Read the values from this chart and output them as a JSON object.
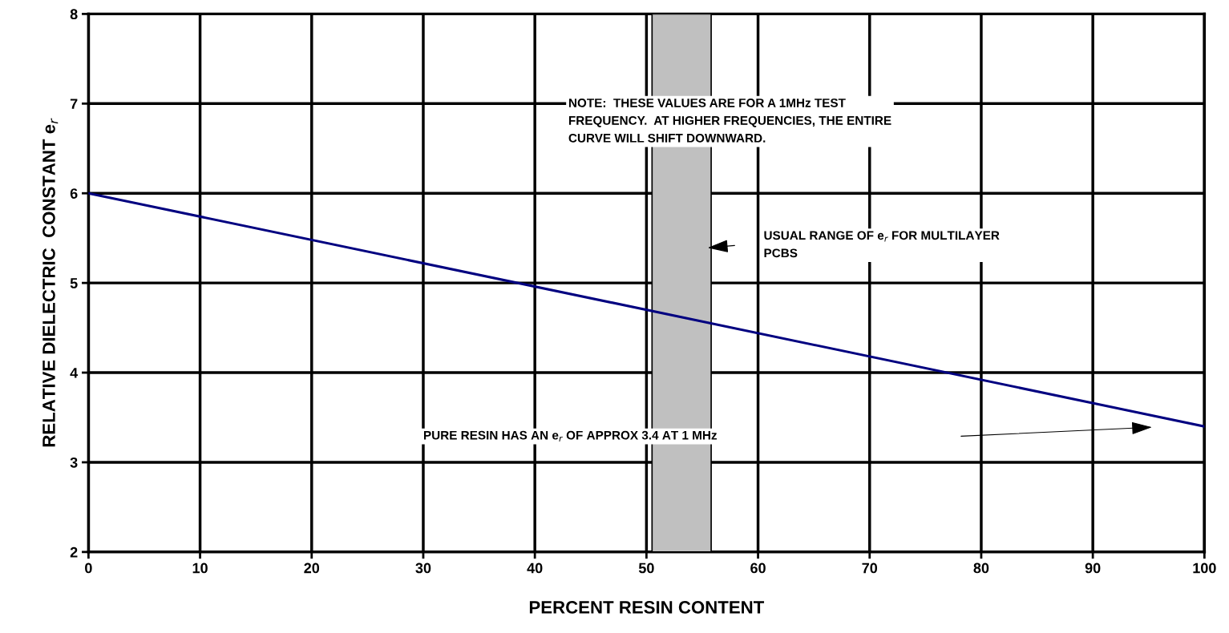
{
  "chart_data": {
    "type": "line",
    "xlabel": "PERCENT RESIN CONTENT",
    "ylabel": "RELATIVE DIELECTRIC  CONSTANT e$_{r}$",
    "x": [
      0,
      100
    ],
    "series": [
      {
        "color": "#000080",
        "values": [
          6,
          3.4
        ]
      }
    ],
    "xlim": [
      0,
      100
    ],
    "ylim": [
      2,
      8
    ],
    "xticks": [
      0,
      10,
      20,
      30,
      40,
      50,
      60,
      70,
      80,
      90,
      100
    ],
    "yticks": [
      2,
      3,
      4,
      5,
      6,
      7,
      8
    ],
    "grid": true,
    "marker": "none",
    "line_style": "solid",
    "bands": [
      {
        "axis": "x",
        "from": 50.5,
        "to": 55.8,
        "color": "#c0c0c0"
      }
    ],
    "annotations": [
      "NOTE:  THESE VALUES ARE FOR A 1MHz TEST\nFREQUENCY.  AT HIGHER FREQUENCIES, THE ENTIRE\nCURVE WILL SHIFT DOWNWARD.",
      "USUAL RANGE OF e$_{r}$ FOR MULTILAYER\nPCBS",
      "PURE RESIN HAS AN e$_{r}$ OF APPROX 3.4 AT 1 MHz"
    ]
  }
}
